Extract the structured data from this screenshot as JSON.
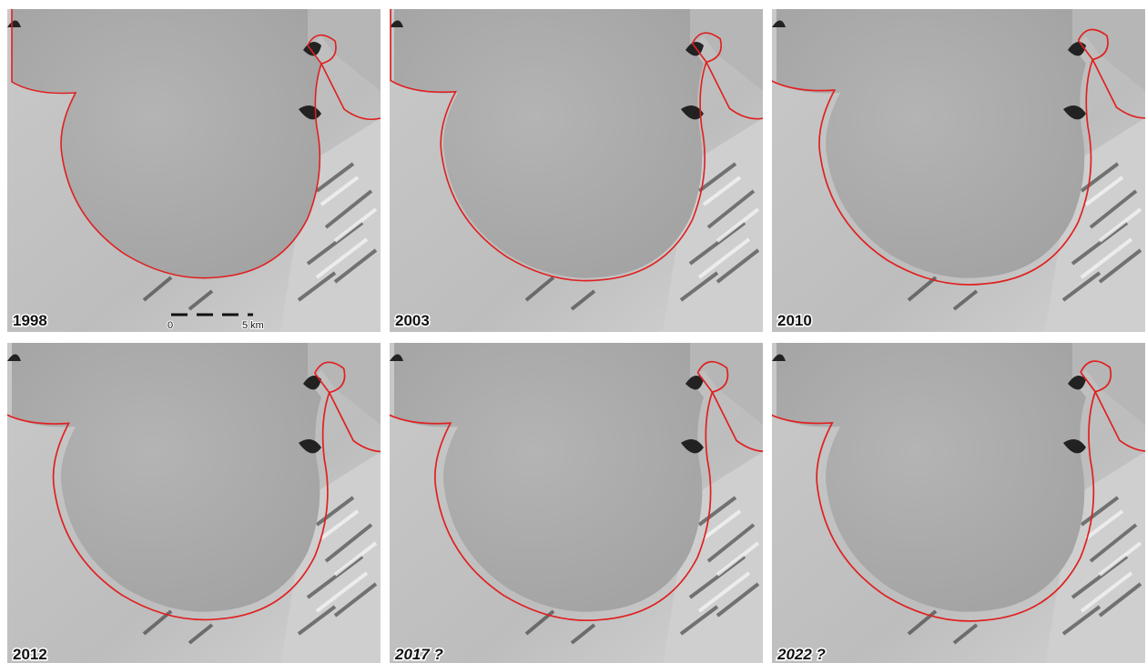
{
  "panels": [
    {
      "label": "1998"
    },
    {
      "label": "2003"
    },
    {
      "label": "2010"
    },
    {
      "label": "2012"
    },
    {
      "label": "2017 ?"
    },
    {
      "label": "2022 ?"
    }
  ],
  "scale_bar": {
    "start": "0",
    "end": "5 km"
  }
}
